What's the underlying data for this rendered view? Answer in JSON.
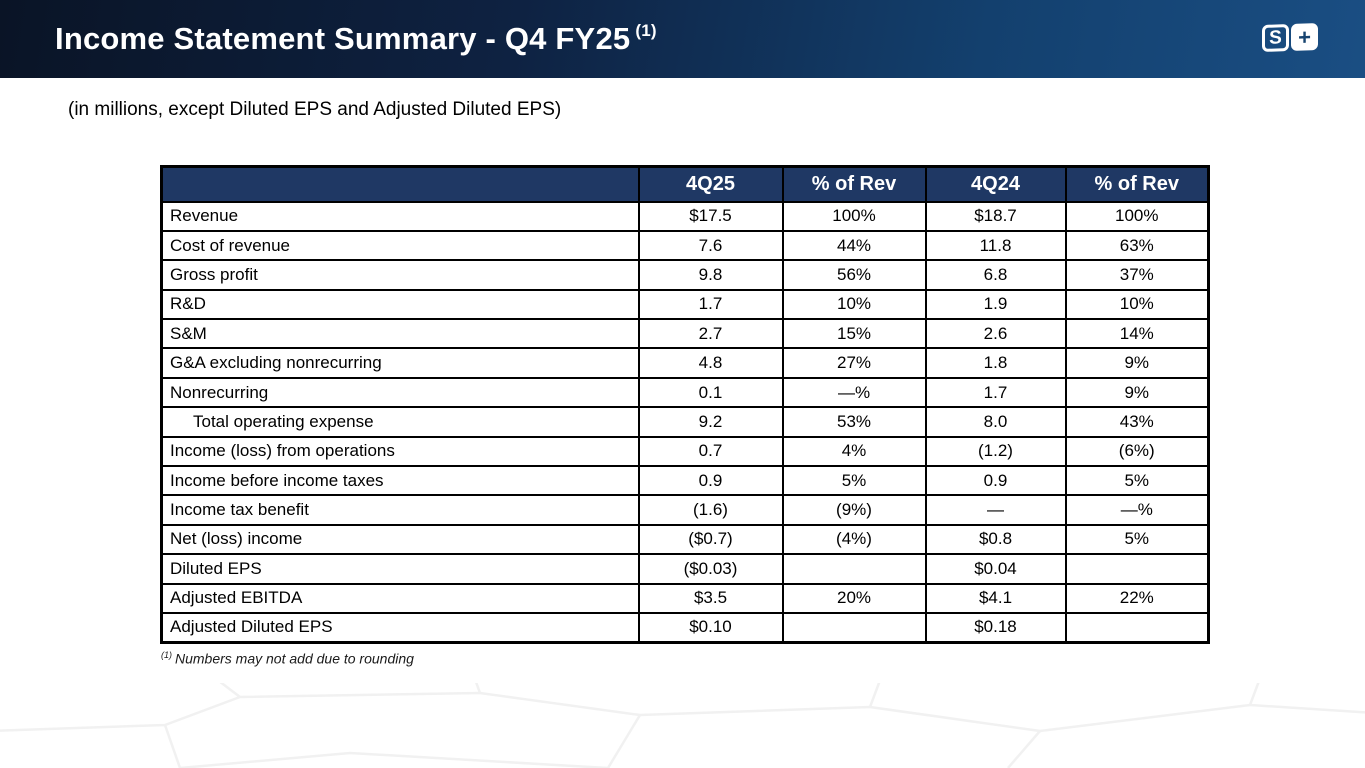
{
  "slide": {
    "title": "Income Statement Summary - Q4 FY25",
    "title_superscript": "(1)",
    "subtitle": "(in millions, except Diluted EPS and Adjusted Diluted EPS)",
    "footnote_marker": "(1)",
    "footnote_text": "Numbers may not add due to rounding",
    "logo": {
      "s_glyph": "S",
      "plus_glyph": "+"
    }
  },
  "colors": {
    "banner_dark": "#0a1426",
    "banner_light": "#1a4e83",
    "table_header_bg": "#1f3864",
    "table_header_text": "#ffffff",
    "border": "#000000"
  },
  "table": {
    "columns": [
      "",
      "4Q25",
      "% of Rev",
      "4Q24",
      "% of Rev"
    ],
    "rows": [
      {
        "label": "Revenue",
        "indent": false,
        "values": [
          "$17.5",
          "100%",
          "$18.7",
          "100%"
        ]
      },
      {
        "label": "Cost of revenue",
        "indent": false,
        "values": [
          "7.6",
          "44%",
          "11.8",
          "63%"
        ]
      },
      {
        "label": "Gross profit",
        "indent": false,
        "values": [
          "9.8",
          "56%",
          "6.8",
          "37%"
        ]
      },
      {
        "label": "R&D",
        "indent": false,
        "values": [
          "1.7",
          "10%",
          "1.9",
          "10%"
        ]
      },
      {
        "label": "S&M",
        "indent": false,
        "values": [
          "2.7",
          "15%",
          "2.6",
          "14%"
        ]
      },
      {
        "label": "G&A excluding nonrecurring",
        "indent": false,
        "values": [
          "4.8",
          "27%",
          "1.8",
          "9%"
        ]
      },
      {
        "label": "Nonrecurring",
        "indent": false,
        "values": [
          "0.1",
          "—%",
          "1.7",
          "9%"
        ]
      },
      {
        "label": "Total operating expense",
        "indent": true,
        "values": [
          "9.2",
          "53%",
          "8.0",
          "43%"
        ]
      },
      {
        "label": "Income (loss) from operations",
        "indent": false,
        "values": [
          "0.7",
          "4%",
          "(1.2)",
          "(6%)"
        ]
      },
      {
        "label": "Income before income taxes",
        "indent": false,
        "values": [
          "0.9",
          "5%",
          "0.9",
          "5%"
        ]
      },
      {
        "label": "Income tax benefit",
        "indent": false,
        "values": [
          "(1.6)",
          "(9%)",
          "—",
          "—%"
        ]
      },
      {
        "label": "Net (loss) income",
        "indent": false,
        "values": [
          "($0.7)",
          "(4%)",
          "$0.8",
          "5%"
        ]
      },
      {
        "label": "Diluted EPS",
        "indent": false,
        "values": [
          "($0.03)",
          "",
          "$0.04",
          ""
        ]
      },
      {
        "label": "Adjusted EBITDA",
        "indent": false,
        "values": [
          "$3.5",
          "20%",
          "$4.1",
          "22%"
        ]
      },
      {
        "label": "Adjusted Diluted EPS",
        "indent": false,
        "values": [
          "$0.10",
          "",
          "$0.18",
          ""
        ]
      }
    ]
  }
}
